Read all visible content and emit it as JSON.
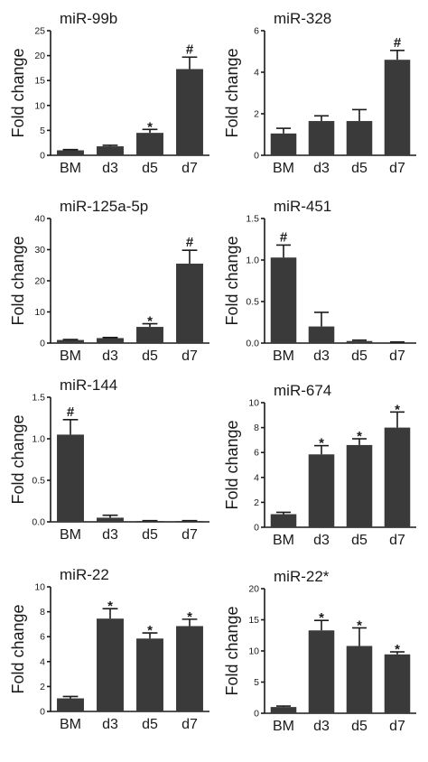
{
  "chart_data": [
    {
      "type": "bar",
      "title": "miR-99b",
      "ylabel": "Fold change",
      "categories": [
        "BM",
        "d3",
        "d5",
        "d7"
      ],
      "values": [
        1.0,
        1.8,
        4.5,
        17.3
      ],
      "errors": [
        0.15,
        0.2,
        0.7,
        2.4
      ],
      "annotations": [
        "",
        "",
        "*",
        "#"
      ],
      "ylim": [
        0,
        25
      ],
      "yticks": [
        0,
        5,
        10,
        15,
        20,
        25
      ],
      "ytick_labels": [
        "0",
        "5",
        "10",
        "15",
        "20",
        "25"
      ]
    },
    {
      "type": "bar",
      "title": "miR-328",
      "ylabel": "Fold change",
      "categories": [
        "BM",
        "d3",
        "d5",
        "d7"
      ],
      "values": [
        1.05,
        1.65,
        1.65,
        4.6
      ],
      "errors": [
        0.25,
        0.25,
        0.55,
        0.45
      ],
      "annotations": [
        "",
        "",
        "",
        "#"
      ],
      "ylim": [
        0,
        6
      ],
      "yticks": [
        0,
        2,
        4,
        6
      ],
      "ytick_labels": [
        "0",
        "2",
        "4",
        "6"
      ]
    },
    {
      "type": "bar",
      "title": "miR-125a-5p",
      "ylabel": "Fold change",
      "categories": [
        "BM",
        "d3",
        "d5",
        "d7"
      ],
      "values": [
        1.0,
        1.6,
        5.2,
        25.5
      ],
      "errors": [
        0.15,
        0.2,
        1.0,
        4.3
      ],
      "annotations": [
        "",
        "",
        "*",
        "#"
      ],
      "ylim": [
        0,
        40
      ],
      "yticks": [
        0,
        10,
        20,
        30,
        40
      ],
      "ytick_labels": [
        "0",
        "10",
        "20",
        "30",
        "40"
      ]
    },
    {
      "type": "bar",
      "title": "miR-451",
      "ylabel": "Fold change",
      "categories": [
        "BM",
        "d3",
        "d5",
        "d7"
      ],
      "values": [
        1.03,
        0.2,
        0.025,
        0.008
      ],
      "errors": [
        0.15,
        0.17,
        0.01,
        0.005
      ],
      "annotations": [
        "#",
        "",
        "",
        ""
      ],
      "ylim": [
        0,
        1.5
      ],
      "yticks": [
        0,
        0.5,
        1.0,
        1.5
      ],
      "ytick_labels": [
        "0.0",
        "0.5",
        "1.0",
        "1.5"
      ]
    },
    {
      "type": "bar",
      "title": "miR-144",
      "ylabel": "Fold change",
      "categories": [
        "BM",
        "d3",
        "d5",
        "d7"
      ],
      "values": [
        1.05,
        0.05,
        0.01,
        0.01
      ],
      "errors": [
        0.18,
        0.03,
        0.005,
        0.005
      ],
      "annotations": [
        "#",
        "",
        "",
        ""
      ],
      "ylim": [
        0,
        1.5
      ],
      "yticks": [
        0,
        0.5,
        1.0,
        1.5
      ],
      "ytick_labels": [
        "0.0",
        "0.5",
        "1.0",
        "1.5"
      ]
    },
    {
      "type": "bar",
      "title": "miR-674",
      "ylabel": "Fold change",
      "categories": [
        "BM",
        "d3",
        "d5",
        "d7"
      ],
      "values": [
        1.05,
        5.85,
        6.6,
        8.0
      ],
      "errors": [
        0.15,
        0.7,
        0.5,
        1.25
      ],
      "annotations": [
        "",
        "*",
        "*",
        "*"
      ],
      "ylim": [
        0,
        10
      ],
      "yticks": [
        0,
        2,
        4,
        6,
        8,
        10
      ],
      "ytick_labels": [
        "0",
        "2",
        "4",
        "6",
        "8",
        "10"
      ]
    },
    {
      "type": "bar",
      "title": "miR-22",
      "ylabel": "Fold change",
      "categories": [
        "BM",
        "d3",
        "d5",
        "d7"
      ],
      "values": [
        1.05,
        7.45,
        5.85,
        6.85
      ],
      "errors": [
        0.15,
        0.8,
        0.45,
        0.55
      ],
      "annotations": [
        "",
        "*",
        "*",
        "*"
      ],
      "ylim": [
        0,
        10
      ],
      "yticks": [
        0,
        2,
        4,
        6,
        8,
        10
      ],
      "ytick_labels": [
        "0",
        "2",
        "4",
        "6",
        "8",
        "10"
      ]
    },
    {
      "type": "bar",
      "title": "miR-22*",
      "ylabel": "Fold change",
      "categories": [
        "BM",
        "d3",
        "d5",
        "d7"
      ],
      "values": [
        1.0,
        13.3,
        10.8,
        9.45
      ],
      "errors": [
        0.15,
        1.6,
        2.9,
        0.4
      ],
      "annotations": [
        "",
        "*",
        "*",
        "*"
      ],
      "ylim": [
        0,
        20
      ],
      "yticks": [
        0,
        5,
        10,
        15,
        20
      ],
      "ytick_labels": [
        "0",
        "5",
        "10",
        "15",
        "20"
      ]
    }
  ]
}
